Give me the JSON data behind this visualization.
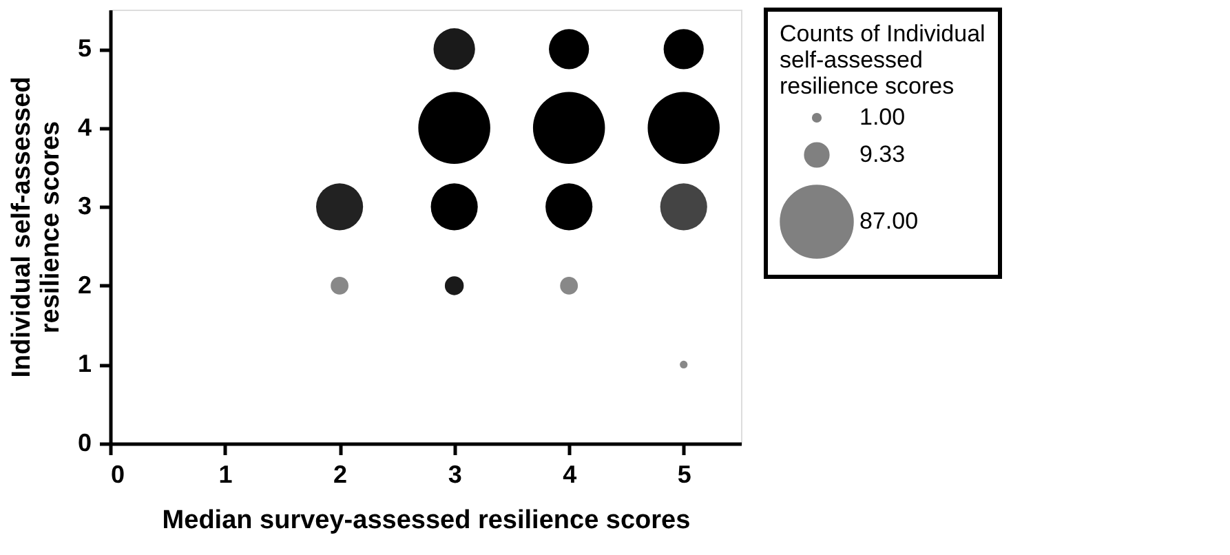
{
  "chart_data": {
    "type": "bubble",
    "xlabel": "Median survey-assessed resilience scores",
    "ylabel": "Individual self-assessed resilience scores",
    "legend_title": "Counts of Individual self-assessed resilience scores",
    "x": [
      2,
      2,
      3,
      3,
      3,
      3,
      4,
      4,
      4,
      4,
      5,
      5,
      5,
      5
    ],
    "values": [
      3,
      2,
      5,
      4,
      3,
      2,
      5,
      4,
      3,
      2,
      5,
      4,
      3,
      1
    ],
    "sizes": [
      37,
      5.3,
      29,
      87,
      37,
      6,
      27,
      87,
      37,
      5.3,
      27,
      87,
      37,
      1
    ],
    "colors": [
      "#222222",
      "#888888",
      "#1a1a1a",
      "#000000",
      "#000000",
      "#1a1a1a",
      "#000000",
      "#000000",
      "#000000",
      "#888888",
      "#000000",
      "#000000",
      "#444444",
      "#888888"
    ],
    "size_legend": [
      {
        "value": 1,
        "label": "1.00"
      },
      {
        "value": 9.33,
        "label": "9.33"
      },
      {
        "value": 87,
        "label": "87.00"
      }
    ],
    "xlim": [
      0,
      5.5
    ],
    "ylim": [
      0,
      5.5
    ],
    "xticks": [
      0,
      1,
      2,
      3,
      4,
      5
    ],
    "yticks": [
      0,
      1,
      2,
      3,
      4,
      5
    ],
    "grid": false
  }
}
